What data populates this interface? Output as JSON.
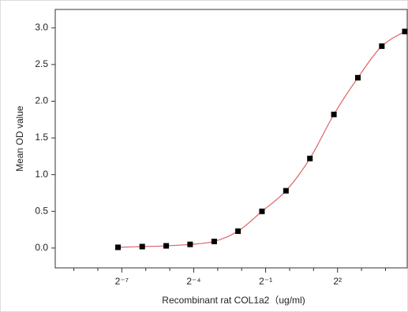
{
  "chart_data": {
    "type": "scatter",
    "x_label": "Recombinant rat COL1a2（ug/ml)",
    "y_label": "Mean OD value",
    "x_scale": "log2",
    "fit_curve": true,
    "series": [
      {
        "color": "#000000",
        "curve_color": "#e06060",
        "x": [
          0.007,
          0.0141,
          0.0282,
          0.0563,
          0.113,
          0.225,
          0.45,
          0.9,
          1.8,
          3.6,
          7.2,
          14.4,
          28
        ],
        "values": [
          0.01,
          0.02,
          0.03,
          0.05,
          0.09,
          0.23,
          0.5,
          0.78,
          1.22,
          1.82,
          2.32,
          2.75,
          2.95
        ]
      }
    ],
    "xlim": [
      0.00114,
      30
    ],
    "xticks": [
      {
        "value": 0.0078125,
        "label": "2⁻⁷"
      },
      {
        "value": 0.0625,
        "label": "2⁻⁴"
      },
      {
        "value": 0.5,
        "label": "2⁻¹"
      },
      {
        "value": 4,
        "label": "2²"
      }
    ],
    "xticks_minor": [
      0.001953125,
      0.00390625,
      0.015625,
      0.03125,
      0.125,
      0.25,
      1,
      2,
      8,
      16
    ],
    "ylim": [
      -0.27,
      3.25
    ],
    "yticks": [
      {
        "value": 0,
        "label": "0.0"
      },
      {
        "value": 0.5,
        "label": "0.5"
      },
      {
        "value": 1,
        "label": "1.0"
      },
      {
        "value": 1.5,
        "label": "1.5"
      },
      {
        "value": 2,
        "label": "2.0"
      },
      {
        "value": 2.5,
        "label": "2.5"
      },
      {
        "value": 3,
        "label": "3.0"
      }
    ]
  }
}
